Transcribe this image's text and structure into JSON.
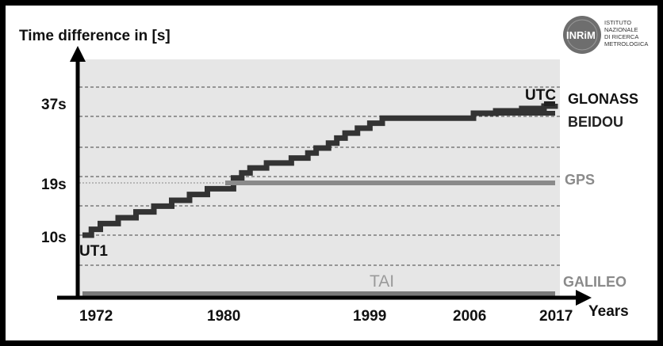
{
  "chart_data": {
    "type": "line",
    "y_axis_title": "Time difference in [s]",
    "x_axis_title": "Years",
    "x_ticks": [
      "1972",
      "1980",
      "1999",
      "2006",
      "2017"
    ],
    "y_ticks": [
      "37s",
      "19s",
      "10s"
    ],
    "xlim": [
      1972,
      2017
    ],
    "ylim": [
      0,
      43
    ],
    "grid": true,
    "series": [
      {
        "name": "UTC",
        "type": "step",
        "color": "#333333",
        "points": [
          [
            1972,
            10
          ],
          [
            1972.5,
            11
          ],
          [
            1973,
            12
          ],
          [
            1974,
            13
          ],
          [
            1975,
            14
          ],
          [
            1976,
            15
          ],
          [
            1977,
            16
          ],
          [
            1978,
            17
          ],
          [
            1979,
            18
          ],
          [
            1981,
            20
          ],
          [
            1982,
            21
          ],
          [
            1983,
            22
          ],
          [
            1985,
            23
          ],
          [
            1988,
            24
          ],
          [
            1990,
            25
          ],
          [
            1991,
            26
          ],
          [
            1992.5,
            27
          ],
          [
            1993.5,
            28
          ],
          [
            1994.5,
            29
          ],
          [
            1996,
            30
          ],
          [
            1997.5,
            31
          ],
          [
            1999,
            32
          ],
          [
            2006,
            33
          ],
          [
            2009,
            34
          ],
          [
            2012.5,
            35
          ],
          [
            2015.5,
            36
          ],
          [
            2017,
            37
          ]
        ]
      },
      {
        "name": "GLONASS",
        "color": "#222222",
        "points": [
          [
            2015.5,
            37
          ],
          [
            2017,
            37
          ]
        ]
      },
      {
        "name": "BEIDOU",
        "color": "#333333",
        "points": [
          [
            2006,
            33
          ],
          [
            2017,
            33
          ]
        ]
      },
      {
        "name": "GPS",
        "color": "#8a8a8a",
        "points": [
          [
            1980,
            19
          ],
          [
            2017,
            19
          ]
        ]
      },
      {
        "name": "GALILEO",
        "color": "#7a7a7a",
        "points": [
          [
            1972,
            0
          ],
          [
            2017,
            0
          ]
        ]
      }
    ],
    "annotations": [
      {
        "text": "UTC",
        "at": [
          2016.5,
          38
        ]
      },
      {
        "text": "UT1",
        "at": [
          1972,
          8
        ]
      },
      {
        "text": "TAI",
        "at": [
          1997,
          2
        ]
      }
    ]
  },
  "series_labels": {
    "glonass": "GLONASS",
    "beidou": "BEIDOU",
    "gps": "GPS",
    "galileo": "GALILEO"
  },
  "logo": {
    "mark": "INRiM",
    "lines": [
      "ISTITUTO",
      "NAZIONALE",
      "DI RICERCA",
      "METROLOGICA"
    ]
  },
  "colors": {
    "plot_bg": "#e6e6e6",
    "utc": "#333333",
    "gps": "#8a8a8a",
    "galileo": "#7a7a7a",
    "labels_gray": "#8a8a8a",
    "tai_label": "#9a9a9a"
  }
}
